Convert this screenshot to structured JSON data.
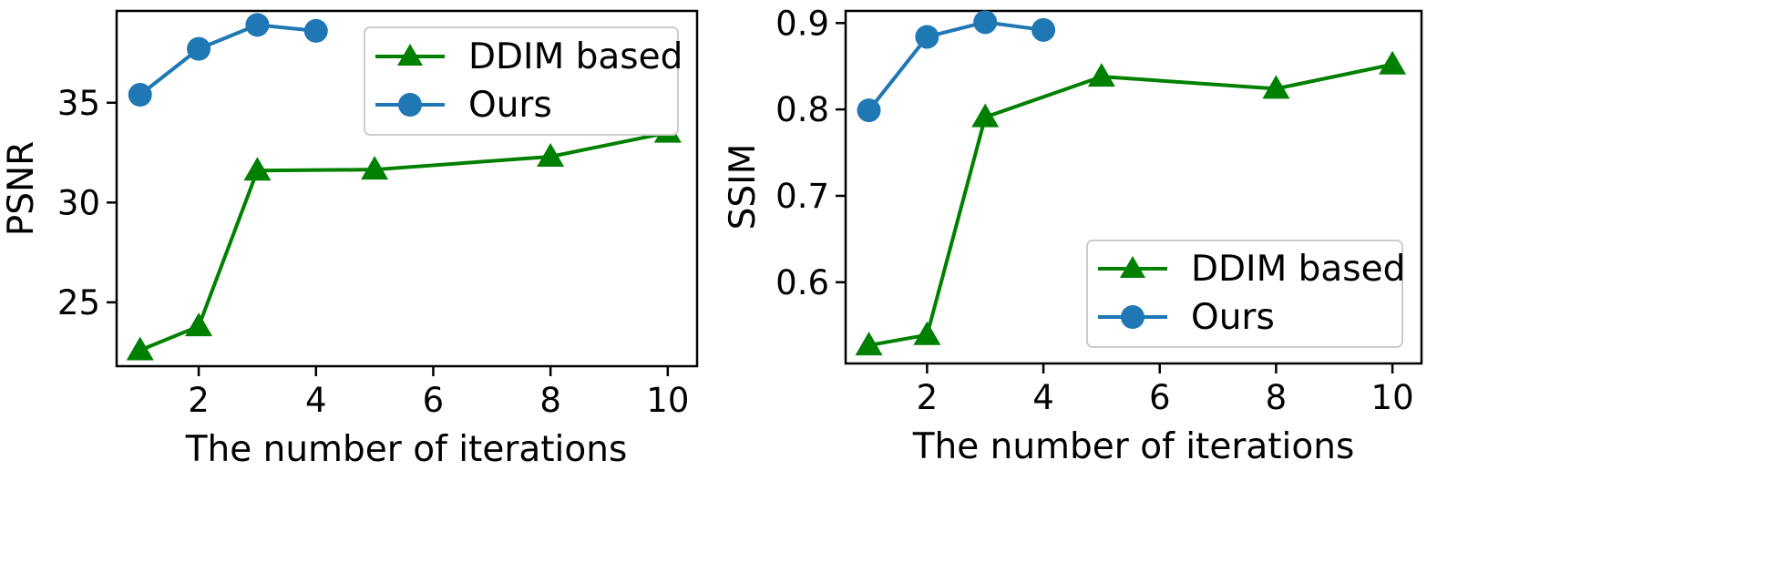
{
  "chart_data": [
    {
      "type": "line",
      "title": "",
      "xlabel": "The number of iterations",
      "ylabel": "PSNR",
      "xlim": [
        0.6,
        10.5
      ],
      "ylim": [
        21.8,
        39.6
      ],
      "xticks": [
        2,
        4,
        6,
        8,
        10
      ],
      "yticks": [
        25,
        30,
        35
      ],
      "legend_position": "top-right",
      "series": [
        {
          "name": "DDIM based",
          "color": "#008000",
          "marker": "triangle",
          "x": [
            1,
            2,
            3,
            5,
            8,
            10
          ],
          "y": [
            22.6,
            23.8,
            31.6,
            31.65,
            32.3,
            33.5
          ]
        },
        {
          "name": "Ours",
          "color": "#1f77b4",
          "marker": "circle",
          "x": [
            1,
            2,
            3,
            4
          ],
          "y": [
            35.4,
            37.7,
            38.9,
            38.6
          ]
        }
      ]
    },
    {
      "type": "line",
      "title": "",
      "xlabel": "The number of iterations",
      "ylabel": "SSIM",
      "xlim": [
        0.6,
        10.5
      ],
      "ylim": [
        0.506,
        0.914
      ],
      "xticks": [
        2,
        4,
        6,
        8,
        10
      ],
      "yticks": [
        0.6,
        0.7,
        0.8,
        0.9
      ],
      "legend_position": "lower-right",
      "series": [
        {
          "name": "DDIM based",
          "color": "#008000",
          "marker": "triangle",
          "x": [
            1,
            2,
            3,
            5,
            8,
            10
          ],
          "y": [
            0.527,
            0.539,
            0.791,
            0.838,
            0.824,
            0.852
          ]
        },
        {
          "name": "Ours",
          "color": "#1f77b4",
          "marker": "circle",
          "x": [
            1,
            2,
            3,
            4
          ],
          "y": [
            0.799,
            0.884,
            0.901,
            0.892
          ]
        }
      ]
    }
  ]
}
